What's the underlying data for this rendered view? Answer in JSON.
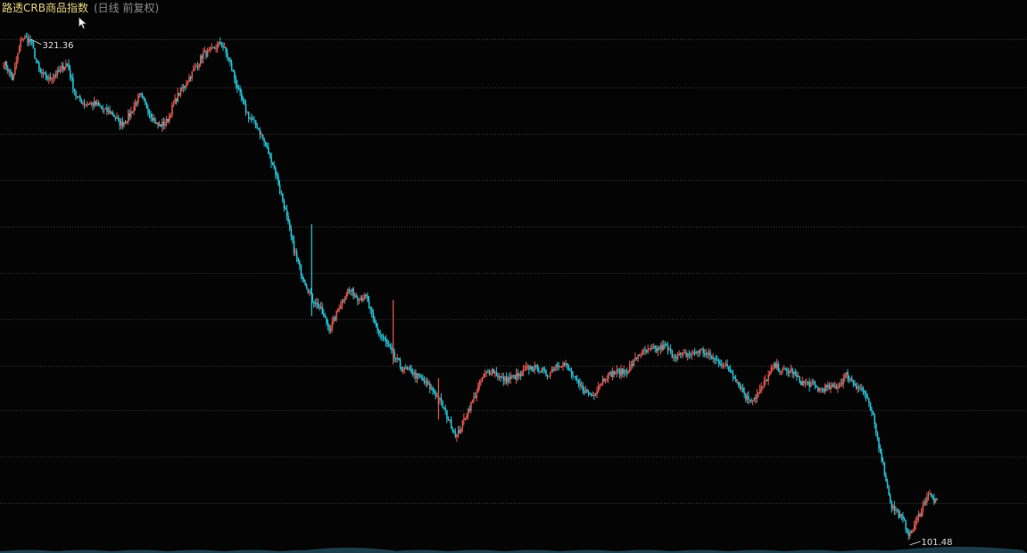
{
  "header": {
    "title": "路透CRB商品指数",
    "subtitle": "(日线 前复权)"
  },
  "icons": {
    "cursor": "mouse-pointer-icon"
  },
  "colors": {
    "up": "#e8584f",
    "down": "#25c6d8",
    "grid": "#3a3a3a",
    "background": "#040404",
    "title": "#e6d27a"
  },
  "chart_data": {
    "type": "candlestick",
    "grid": true,
    "ylim": [
      101.48,
      321.36
    ],
    "annotations": {
      "high": "321.36",
      "low": "101.48"
    },
    "trend": [
      310,
      300,
      320,
      321.36,
      308,
      303,
      305,
      312,
      300,
      296,
      293,
      290,
      291,
      287,
      289,
      294,
      288,
      284,
      286,
      293,
      298,
      307,
      317,
      318,
      319,
      310,
      300,
      292,
      285,
      273,
      263,
      250,
      232,
      216,
      205,
      202,
      196,
      205,
      210,
      207,
      210,
      200,
      192,
      183,
      178,
      180,
      177,
      170,
      163,
      156,
      150,
      158,
      163,
      172,
      177,
      175,
      174,
      173,
      178,
      181,
      179,
      181,
      179,
      174,
      172,
      168,
      171,
      173,
      176,
      179,
      183,
      182,
      184,
      189,
      186,
      184,
      183,
      187,
      187,
      184,
      178,
      171,
      166,
      168,
      172,
      176,
      174,
      177,
      173,
      170,
      166,
      169,
      173,
      178,
      171,
      167,
      158,
      141,
      120,
      112,
      104,
      115,
      125,
      118
    ],
    "spikes": [
      {
        "index": 34,
        "high": 241,
        "low": 201,
        "direction": "down"
      },
      {
        "index": 43,
        "high": 208,
        "low": 180,
        "direction": "up"
      },
      {
        "index": 48,
        "high": 174,
        "low": 156,
        "direction": "up"
      }
    ]
  }
}
